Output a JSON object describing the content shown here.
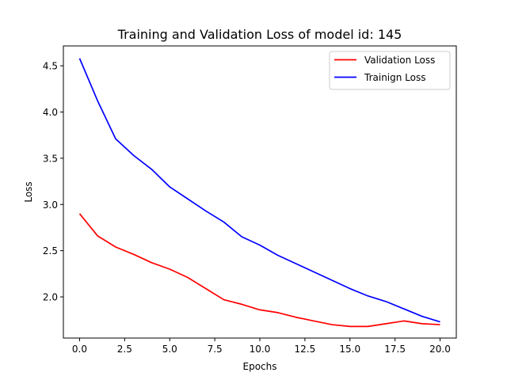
{
  "chart_data": {
    "type": "line",
    "title": "Training and Validation Loss of model id: 145",
    "xlabel": "Epochs",
    "ylabel": "Loss",
    "xlim": [
      -0.9,
      20.9
    ],
    "ylim": [
      1.555,
      4.715
    ],
    "x": [
      0,
      1,
      2,
      3,
      4,
      5,
      6,
      7,
      8,
      9,
      10,
      11,
      12,
      13,
      14,
      15,
      16,
      17,
      18,
      19,
      20
    ],
    "xticks": [
      0,
      2.5,
      5,
      7.5,
      10,
      12.5,
      15,
      17.5,
      20
    ],
    "xtick_labels": [
      "0.0",
      "2.5",
      "5.0",
      "7.5",
      "10.0",
      "12.5",
      "15.0",
      "17.5",
      "20.0"
    ],
    "yticks": [
      2.0,
      2.5,
      3.0,
      3.5,
      4.0,
      4.5
    ],
    "ytick_labels": [
      "2.0",
      "2.5",
      "3.0",
      "3.5",
      "4.0",
      "4.5"
    ],
    "grid": false,
    "legend_position": "top-right",
    "series": [
      {
        "name": "Validation Loss",
        "color": "#ff0000",
        "values": [
          2.9,
          2.66,
          2.54,
          2.46,
          2.37,
          2.3,
          2.21,
          2.09,
          1.97,
          1.92,
          1.86,
          1.83,
          1.78,
          1.74,
          1.7,
          1.68,
          1.68,
          1.71,
          1.74,
          1.71,
          1.7
        ]
      },
      {
        "name": "Trainign Loss",
        "color": "#0000ff",
        "values": [
          4.58,
          4.12,
          3.71,
          3.53,
          3.38,
          3.19,
          3.06,
          2.93,
          2.81,
          2.65,
          2.56,
          2.45,
          2.36,
          2.27,
          2.18,
          2.09,
          2.01,
          1.95,
          1.87,
          1.79,
          1.73
        ]
      }
    ]
  }
}
